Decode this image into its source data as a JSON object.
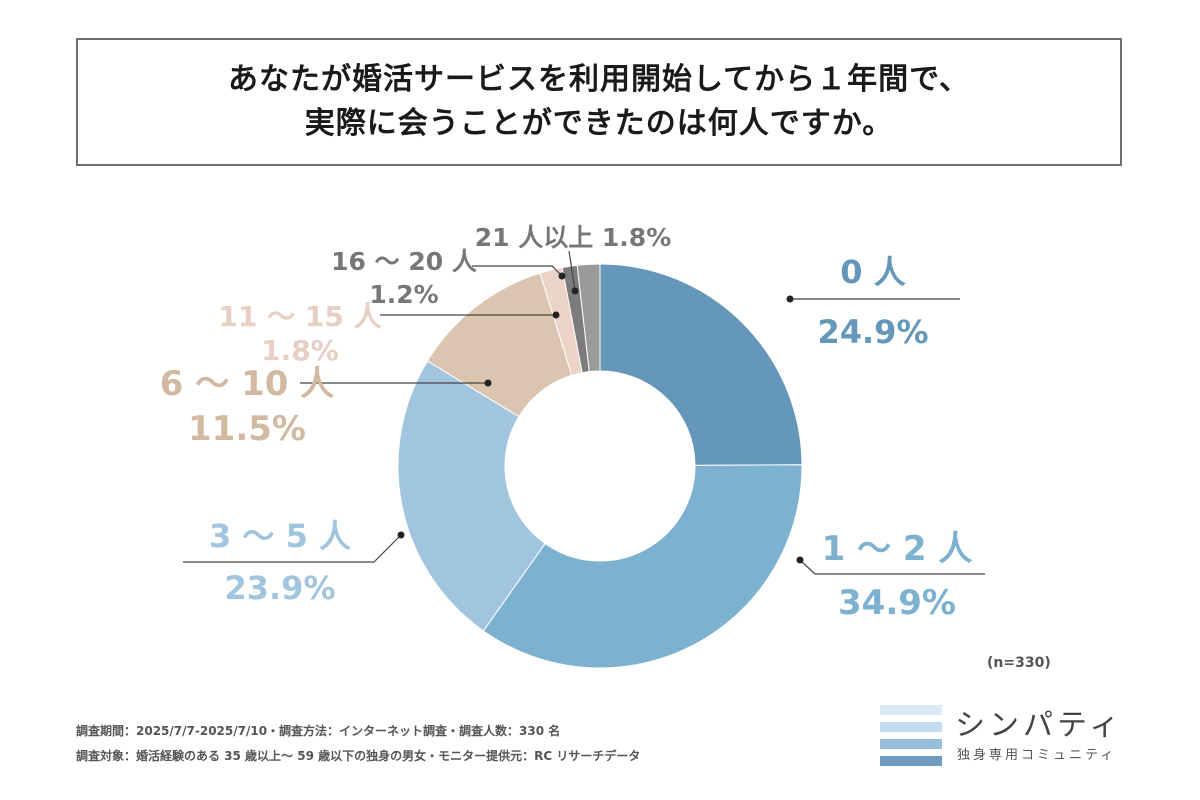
{
  "title": {
    "line1": "あなたが婚活サービスを利用開始してから１年間で、",
    "line2": "実際に会うことができたのは何人ですか。"
  },
  "chart_data": {
    "type": "pie",
    "donut": true,
    "title": "あなたが婚活サービスを利用開始してから１年間で、実際に会うことができたのは何人ですか。",
    "sample_size": "(n=330)",
    "slices": [
      {
        "label": "0 人",
        "value": 24.9,
        "display": "24.9%",
        "color": "#6497b9"
      },
      {
        "label": "1 ～ 2 人",
        "value": 34.9,
        "display": "34.9%",
        "color": "#7cb1cf"
      },
      {
        "label": "3 ～ 5 人",
        "value": 23.9,
        "display": "23.9%",
        "color": "#a2c5df"
      },
      {
        "label": "6 ～ 10 人",
        "value": 11.5,
        "display": "11.5%",
        "color": "#dcc5b0"
      },
      {
        "label": "11 ～ 15 人",
        "value": 1.8,
        "display": "1.8%",
        "color": "#ebd3c7"
      },
      {
        "label": "16 ～ 20 人",
        "value": 1.2,
        "display": "1.2%",
        "color": "#7c7c7c"
      },
      {
        "label": "21 人以上",
        "value": 1.8,
        "display": "1.8%",
        "color": "#9a9a9a"
      }
    ]
  },
  "footnotes": {
    "line1": "調査期間：2025/7/7-2025/7/10・調査方法：インターネット調査・調査人数：330 名",
    "line2": "調査対象：婚活経験のある 35 歳以上～ 59 歳以下の独身の男女・モニター提供元：RC リサーチデータ"
  },
  "logo": {
    "name": "シンパティ",
    "subtitle": "独身専用コミュニティ",
    "bar_colors": [
      "#d9e9f5",
      "#c2dcef",
      "#98bdd8",
      "#6e9dc0"
    ]
  },
  "label_colors": {
    "blue_dark": "#6497b9",
    "blue_mid": "#7cb1cf",
    "blue_light": "#a2c5df",
    "beige": "#d2b9a1",
    "pink": "#e7cfc3",
    "gray": "#777777"
  }
}
